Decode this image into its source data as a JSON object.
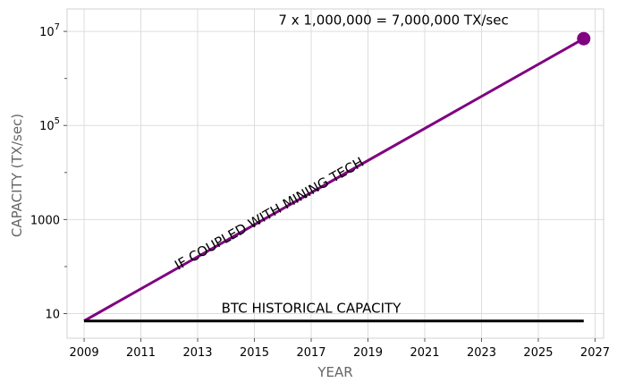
{
  "chart_data": {
    "type": "line",
    "title": "",
    "xlabel": "YEAR",
    "ylabel": "CAPACITY (TX/sec)",
    "y_scale": "log",
    "xlim": [
      2008.4,
      2027.3
    ],
    "ylim": [
      3,
      30000000
    ],
    "x_ticks": [
      2009,
      2011,
      2013,
      2015,
      2017,
      2019,
      2021,
      2023,
      2025,
      2027
    ],
    "x_tick_labels": [
      "2009",
      "2011",
      "2013",
      "2015",
      "2017",
      "2019",
      "2021",
      "2023",
      "2025",
      "2027"
    ],
    "y_ticks": [
      10,
      1000,
      100000,
      10000000
    ],
    "y_tick_labels": [
      "10",
      "1000",
      "10^5",
      "10^7"
    ],
    "y_minor_ticks": [
      100,
      10000,
      1000000
    ],
    "grid": true,
    "series": [
      {
        "name": "IF COUPLED WITH MINING TECH",
        "color": "#800080",
        "x": [
          2009.0,
          2026.6
        ],
        "y": [
          7,
          7000000
        ]
      },
      {
        "name": "BTC HISTORICAL CAPACITY",
        "color": "#000000",
        "x": [
          2009.0,
          2026.6
        ],
        "y": [
          7,
          7
        ]
      }
    ],
    "marker": {
      "x": 2026.6,
      "y": 7000000,
      "color": "#800080"
    },
    "annotations": [
      {
        "text": "7 x 1,000,000 = 7,000,000 TX/sec",
        "x": 2019.9,
        "y": 14000000
      },
      {
        "text": "IF COUPLED WITH MINING TECH",
        "x": 2015.6,
        "y": 1100,
        "rotate_with_series": true
      },
      {
        "text": "BTC HISTORICAL CAPACITY",
        "x": 2017.0,
        "y": 10.5
      }
    ]
  }
}
